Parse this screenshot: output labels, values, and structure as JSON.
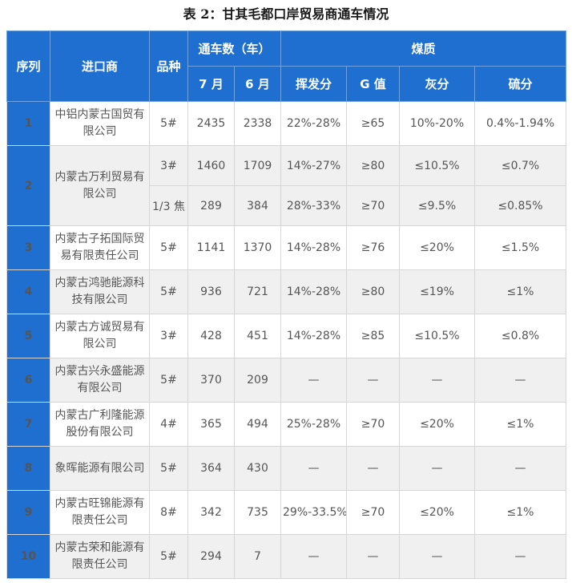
{
  "title": "表 2：甘其毛都口岸贸易商通车情况",
  "headers": {
    "seq": "序列",
    "importer": "进口商",
    "variety": "品种",
    "traffic": "通车数（车）",
    "jul": "7 月",
    "jun": "6 月",
    "coal_quality": "煤质",
    "volatile": "挥发分",
    "g_value": "G 值",
    "ash": "灰分",
    "sulfur": "硫分"
  },
  "rows": [
    {
      "seq": "1",
      "importer": "中铝内蒙古国贸有限公司",
      "variety": "5#",
      "jul": "2435",
      "jun": "2338",
      "volatile": "22%-28%",
      "g": "≥65",
      "ash": "10%-20%",
      "sulfur": "0.4%-1.94%"
    },
    {
      "seq": "2",
      "importer": "内蒙古万利贸易有限公司",
      "variety": "3#",
      "jul": "1460",
      "jun": "1709",
      "volatile": "14%-27%",
      "g": "≥80",
      "ash": "≤10.5%",
      "sulfur": "≤0.7%"
    },
    {
      "seq": "",
      "importer": "",
      "variety": "1/3 焦",
      "jul": "289",
      "jun": "384",
      "volatile": "28%-33%",
      "g": "≥70",
      "ash": "≤9.5%",
      "sulfur": "≤0.85%"
    },
    {
      "seq": "3",
      "importer": "内蒙古子拓国际贸易有限责任公司",
      "variety": "5#",
      "jul": "1141",
      "jun": "1370",
      "volatile": "14%-28%",
      "g": "≥76",
      "ash": "≤20%",
      "sulfur": "≤1.5%"
    },
    {
      "seq": "4",
      "importer": "内蒙古鸿驰能源科技有限公司",
      "variety": "5#",
      "jul": "936",
      "jun": "721",
      "volatile": "14%-28%",
      "g": "≥80",
      "ash": "≤19%",
      "sulfur": "≤1%"
    },
    {
      "seq": "5",
      "importer": "内蒙古方诚贸易有限公司",
      "variety": "3#",
      "jul": "428",
      "jun": "451",
      "volatile": "14%-28%",
      "g": "≥85",
      "ash": "≤10.5%",
      "sulfur": "≤0.8%"
    },
    {
      "seq": "6",
      "importer": "内蒙古兴永盛能源有限公司",
      "variety": "5#",
      "jul": "370",
      "jun": "209",
      "volatile": "—",
      "g": "—",
      "ash": "—",
      "sulfur": "—"
    },
    {
      "seq": "7",
      "importer": "内蒙古广利隆能源股份有限公司",
      "variety": "4#",
      "jul": "365",
      "jun": "494",
      "volatile": "25%-28%",
      "g": "≥70",
      "ash": "≤20%",
      "sulfur": "≤1%"
    },
    {
      "seq": "8",
      "importer": "象晖能源有限公司",
      "variety": "5#",
      "jul": "364",
      "jun": "430",
      "volatile": "—",
      "g": "—",
      "ash": "—",
      "sulfur": "—"
    },
    {
      "seq": "9",
      "importer": "内蒙古旺锦能源有限责任公司",
      "variety": "8#",
      "jul": "342",
      "jun": "735",
      "volatile": "29%-33.5%",
      "g": "≥70",
      "ash": "≤20%",
      "sulfur": "≤1%"
    },
    {
      "seq": "10",
      "importer": "内蒙古荣和能源有限责任公司",
      "variety": "5#",
      "jul": "294",
      "jun": "7",
      "volatile": "—",
      "g": "—",
      "ash": "—",
      "sulfur": "—"
    }
  ]
}
